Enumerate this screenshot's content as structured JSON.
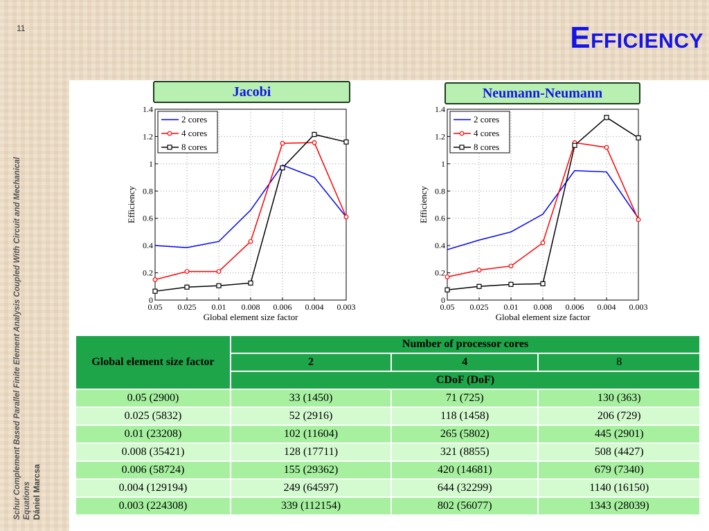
{
  "slide": {
    "number": "11",
    "title_first": "E",
    "title_rest": "FFICIENCY",
    "side_subject_line1": "Schur Complement Based Parallel Finite Element Analysis Coupled With Circuit and Mechanical",
    "side_subject_line2": "Equations",
    "side_author": "Dániel Marcsa"
  },
  "colors": {
    "title": "#1414e8",
    "header_green": "#1ea54a",
    "row_dark": "#a6f0a0",
    "row_light": "#d4fad0",
    "label_bg": "#b7f0b0"
  },
  "chart_data": [
    {
      "type": "line",
      "title": "Jacobi",
      "xlabel": "Global element size factor",
      "ylabel": "Efficiency",
      "categories": [
        "0.05",
        "0.025",
        "0.01",
        "0.008",
        "0.006",
        "0.004",
        "0.003"
      ],
      "ylim": [
        0,
        1.4
      ],
      "yticks": [
        "0",
        "0.2",
        "0.4",
        "0.6",
        "0.8",
        "1",
        "1.2",
        "1.4"
      ],
      "grid": true,
      "legend": "top-left",
      "series": [
        {
          "name": "2 cores",
          "color": "#0000ff",
          "marker": "none",
          "values": [
            0.4,
            0.385,
            0.43,
            0.66,
            0.99,
            0.9,
            0.61
          ]
        },
        {
          "name": "4 cores",
          "color": "#ff0000",
          "marker": "circle",
          "values": [
            0.15,
            0.21,
            0.21,
            0.43,
            1.15,
            1.155,
            0.61
          ]
        },
        {
          "name": "8 cores",
          "color": "#000000",
          "marker": "square",
          "values": [
            0.065,
            0.095,
            0.105,
            0.125,
            0.97,
            1.215,
            1.16
          ]
        }
      ]
    },
    {
      "type": "line",
      "title": "Neumann-Neumann",
      "xlabel": "Global element size factor",
      "ylabel": "Efficiency",
      "categories": [
        "0.05",
        "0.025",
        "0.01",
        "0.008",
        "0.006",
        "0.004",
        "0.003"
      ],
      "ylim": [
        0,
        1.4
      ],
      "yticks": [
        "0",
        "0.2",
        "0.4",
        "0.6",
        "0.8",
        "1",
        "1.2",
        "1.4"
      ],
      "grid": true,
      "legend": "top-left",
      "series": [
        {
          "name": "2 cores",
          "color": "#0000ff",
          "marker": "none",
          "values": [
            0.37,
            0.44,
            0.5,
            0.63,
            0.95,
            0.94,
            0.6
          ]
        },
        {
          "name": "4 cores",
          "color": "#ff0000",
          "marker": "circle",
          "values": [
            0.17,
            0.22,
            0.25,
            0.42,
            1.155,
            1.12,
            0.59
          ]
        },
        {
          "name": "8 cores",
          "color": "#000000",
          "marker": "square",
          "values": [
            0.075,
            0.1,
            0.115,
            0.12,
            1.135,
            1.34,
            1.19
          ]
        }
      ]
    }
  ],
  "table": {
    "corner": "Global element size factor",
    "group_header": "Number of processor cores",
    "cores": [
      "2",
      "4",
      "8"
    ],
    "sub_header": "CDoF (DoF)",
    "rows": [
      [
        "0.05 (2900)",
        "33 (1450)",
        "71 (725)",
        "130 (363)"
      ],
      [
        "0.025 (5832)",
        "52 (2916)",
        "118 (1458)",
        "206 (729)"
      ],
      [
        "0.01 (23208)",
        "102 (11604)",
        "265 (5802)",
        "445 (2901)"
      ],
      [
        "0.008 (35421)",
        "128 (17711)",
        "321 (8855)",
        "508 (4427)"
      ],
      [
        "0.006 (58724)",
        "155 (29362)",
        "420 (14681)",
        "679 (7340)"
      ],
      [
        "0.004 (129194)",
        "249 (64597)",
        "644 (32299)",
        "1140 (16150)"
      ],
      [
        "0.003 (224308)",
        "339 (112154)",
        "802 (56077)",
        "1343 (28039)"
      ]
    ]
  }
}
